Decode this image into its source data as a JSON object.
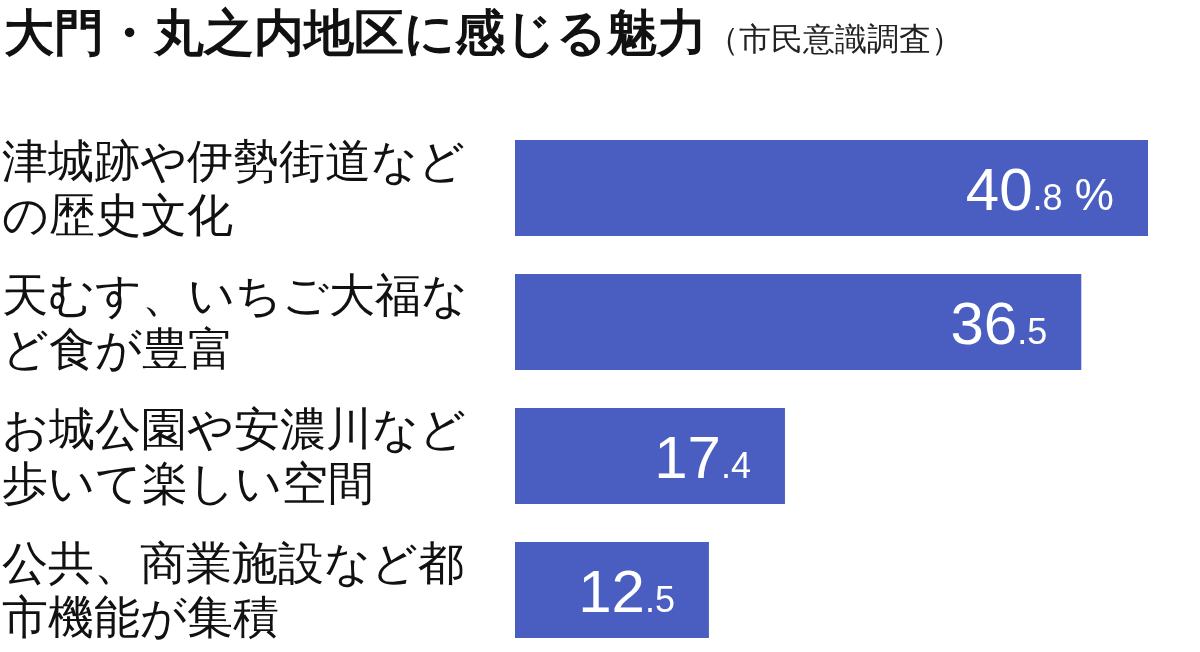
{
  "chart_data": {
    "type": "bar",
    "orientation": "horizontal",
    "title": "大門・丸之内地区に感じる魅力",
    "subtitle": "（市民意識調査）",
    "categories": [
      "津城跡や伊勢街道などの歴史文化",
      "天むす、いちご大福など食が豊富",
      "お城公園や安濃川など歩いて楽しい空間",
      "公共、商業施設など都市機能が集積"
    ],
    "values": [
      40.8,
      36.5,
      17.4,
      12.5
    ],
    "value_labels": [
      "40.8 %",
      "36.5",
      "17.4",
      "12.5"
    ],
    "color": "#4a5ec2"
  }
}
